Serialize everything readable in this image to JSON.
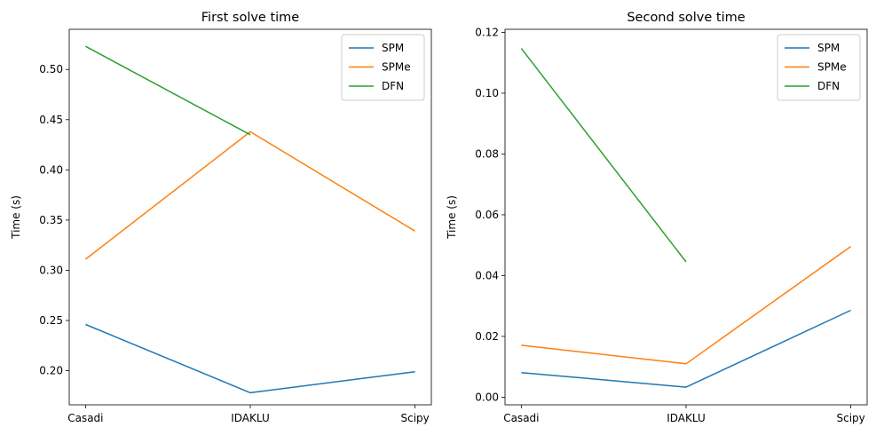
{
  "chart_data": [
    {
      "type": "line",
      "title": "First solve time",
      "xlabel": "",
      "ylabel": "Time (s)",
      "categories": [
        "Casadi",
        "IDAKLU",
        "Scipy"
      ],
      "ylim": [
        0.166,
        0.54
      ],
      "yticks": [
        0.2,
        0.25,
        0.3,
        0.35,
        0.4,
        0.45,
        0.5
      ],
      "ytick_labels": [
        "0.20",
        "0.25",
        "0.30",
        "0.35",
        "0.40",
        "0.45",
        "0.50"
      ],
      "legend_position": "top-right",
      "grid": false,
      "series": [
        {
          "name": "SPM",
          "color": "#1f77b4",
          "values": [
            0.246,
            0.178,
            0.199
          ]
        },
        {
          "name": "SPMe",
          "color": "#ff7f0e",
          "values": [
            0.311,
            0.438,
            0.339
          ]
        },
        {
          "name": "DFN",
          "color": "#2ca02c",
          "values": [
            0.523,
            0.435,
            null
          ]
        }
      ]
    },
    {
      "type": "line",
      "title": "Second solve time",
      "xlabel": "",
      "ylabel": "Time (s)",
      "categories": [
        "Casadi",
        "IDAKLU",
        "Scipy"
      ],
      "ylim": [
        -0.0025,
        0.121
      ],
      "yticks": [
        0.0,
        0.02,
        0.04,
        0.06,
        0.08,
        0.1,
        0.12
      ],
      "ytick_labels": [
        "0.00",
        "0.02",
        "0.04",
        "0.06",
        "0.08",
        "0.10",
        "0.12"
      ],
      "legend_position": "top-right",
      "grid": false,
      "series": [
        {
          "name": "SPM",
          "color": "#1f77b4",
          "values": [
            0.0081,
            0.0033,
            0.0286
          ]
        },
        {
          "name": "SPMe",
          "color": "#ff7f0e",
          "values": [
            0.0171,
            0.011,
            0.0496
          ]
        },
        {
          "name": "DFN",
          "color": "#2ca02c",
          "values": [
            0.1147,
            0.0445,
            null
          ]
        }
      ]
    }
  ]
}
